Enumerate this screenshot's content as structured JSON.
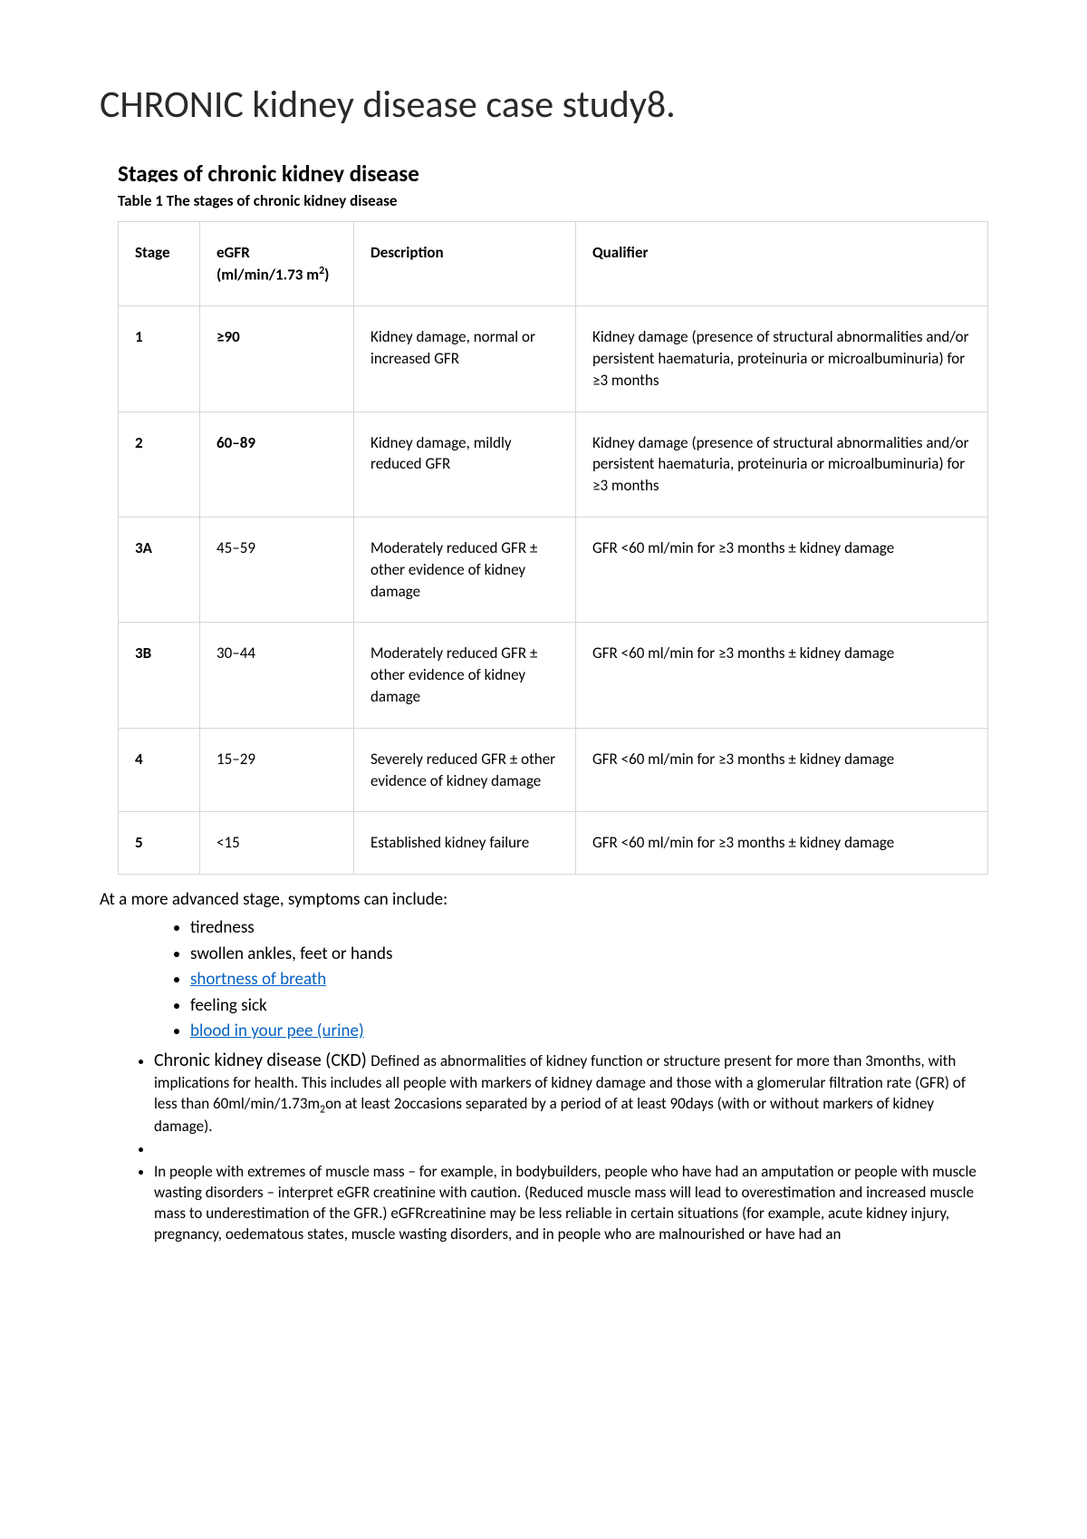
{
  "title": "CHRONIC kidney disease case study8.",
  "section_heading": "Stages of chronic kidney disease",
  "table_caption": "Table 1 The stages of chronic kidney disease",
  "table": {
    "headers": {
      "stage": "Stage",
      "egfr_pre": "eGFR",
      "egfr_units_pre": "(ml/min/1.73 m",
      "egfr_units_sup": "2",
      "egfr_units_post": ")",
      "description": "Description",
      "qualifier": "Qualifier"
    },
    "rows": [
      {
        "stage": "1",
        "egfr": "≥90",
        "description": "Kidney damage, normal or increased GFR",
        "qualifier": "Kidney damage (presence of structural abnormalities and/or persistent haematuria, proteinuria or microalbuminuria) for ≥3 months"
      },
      {
        "stage": "2",
        "egfr": "60–89",
        "description": "Kidney damage, mildly reduced GFR",
        "qualifier": "Kidney damage (presence of structural abnormalities and/or persistent haematuria, proteinuria or microalbuminuria) for ≥3 months"
      },
      {
        "stage": "3A",
        "egfr": "45–59",
        "description": "Moderately reduced GFR ± other evidence of kidney damage",
        "qualifier": "GFR <60 ml/min for ≥3 months ± kidney damage"
      },
      {
        "stage": "3B",
        "egfr": "30–44",
        "description": "Moderately reduced GFR ± other evidence of kidney damage",
        "qualifier": "GFR <60 ml/min for ≥3 months ± kidney damage"
      },
      {
        "stage": "4",
        "egfr": "15–29",
        "description": "Severely reduced GFR ± other evidence of kidney damage",
        "qualifier": "GFR <60 ml/min for ≥3 months ± kidney damage"
      },
      {
        "stage": "5",
        "egfr": "<15",
        "description": "Established kidney failure",
        "qualifier": "GFR <60 ml/min for ≥3 months ± kidney damage"
      }
    ]
  },
  "intro_line": "At a more advanced stage, symptoms can include:",
  "symptoms": [
    {
      "text": "tiredness",
      "link": false
    },
    {
      "text": "swollen ankles, feet or hands",
      "link": false
    },
    {
      "text": "shortness of breath",
      "link": true
    },
    {
      "text": "feeling sick",
      "link": false
    },
    {
      "text": "blood in your pee (urine)",
      "link": true
    }
  ],
  "ckd_def": {
    "lead": "Chronic kidney disease (CKD) ",
    "body_pre": "Defined as abnormalities of kidney function or structure present for more than 3months, with implications for health. This includes all people with markers of kidney damage and those with a glomerular filtration rate (GFR) of less than 60ml/min/1.73m",
    "body_sub": "2",
    "body_post": "on at least 2occasions separated by a period of at least 90days (with or without markers of kidney damage)."
  },
  "note2": "In people with extremes of muscle mass – for example, in bodybuilders, people who have had an amputation or people with muscle wasting disorders – interpret eGFR creatinine with caution. (Reduced muscle mass will lead to overestimation and increased muscle mass to underestimation of the GFR.) eGFRcreatinine may be less reliable in certain situations (for example, acute kidney injury, pregnancy, oedematous states, muscle wasting disorders, and in people who are malnourished or have had an"
}
